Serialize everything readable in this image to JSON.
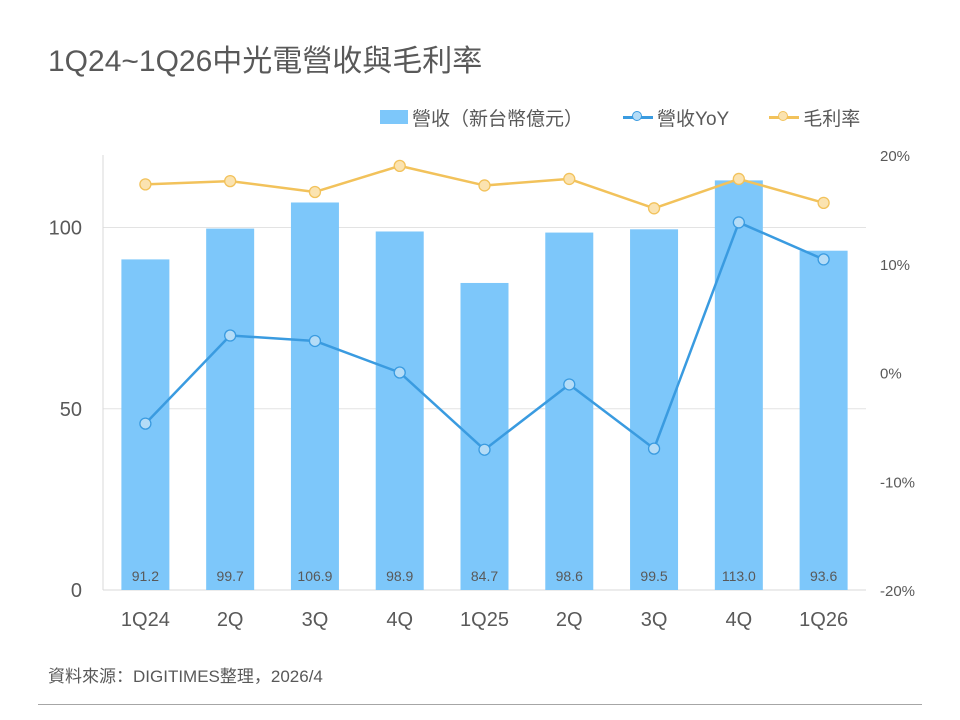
{
  "chart_data": {
    "type": "bar+line",
    "title": "1Q24~1Q26中光電營收與毛利率",
    "categories": [
      "1Q24",
      "2Q",
      "3Q",
      "4Q",
      "1Q25",
      "2Q",
      "3Q",
      "4Q",
      "1Q26"
    ],
    "series": [
      {
        "name": "營收（新台幣億元）",
        "type": "bar",
        "axis": "left",
        "values": [
          91.2,
          99.7,
          106.9,
          98.9,
          84.7,
          98.6,
          99.5,
          113.0,
          93.6
        ],
        "labels": [
          "91.2",
          "99.7",
          "106.9",
          "98.9",
          "84.7",
          "98.6",
          "99.5",
          "113.0",
          "93.6"
        ]
      },
      {
        "name": "營收YoY",
        "type": "line",
        "axis": "right",
        "values": [
          -4.7,
          3.4,
          2.9,
          0.0,
          -7.1,
          -1.1,
          -7.0,
          13.8,
          10.4
        ]
      },
      {
        "name": "毛利率",
        "type": "line",
        "axis": "right",
        "values": [
          17.3,
          17.6,
          16.6,
          19.0,
          17.2,
          17.8,
          15.1,
          17.8,
          15.6
        ]
      }
    ],
    "y_left": {
      "min": 0,
      "max": 120,
      "ticks": [
        0,
        50,
        100
      ],
      "tick_labels": [
        "0",
        "50",
        "100"
      ]
    },
    "y_right": {
      "min": -20,
      "max": 20,
      "ticks": [
        -20,
        -10,
        0,
        10,
        20
      ],
      "tick_labels": [
        "-20%",
        "-10%",
        "0%",
        "10%",
        "20%"
      ]
    },
    "grid": true,
    "legend": "top-right",
    "colors": {
      "bar": "#7dc7fa",
      "yoy": "#3a9be0",
      "yoy_marker": "#b4dcf7",
      "gm": "#f2c25b",
      "gm_marker": "#fbe3b0",
      "grid": "#e3e3e3",
      "text": "#595959"
    }
  },
  "source": "資料來源：DIGITIMES整理，2026/4"
}
